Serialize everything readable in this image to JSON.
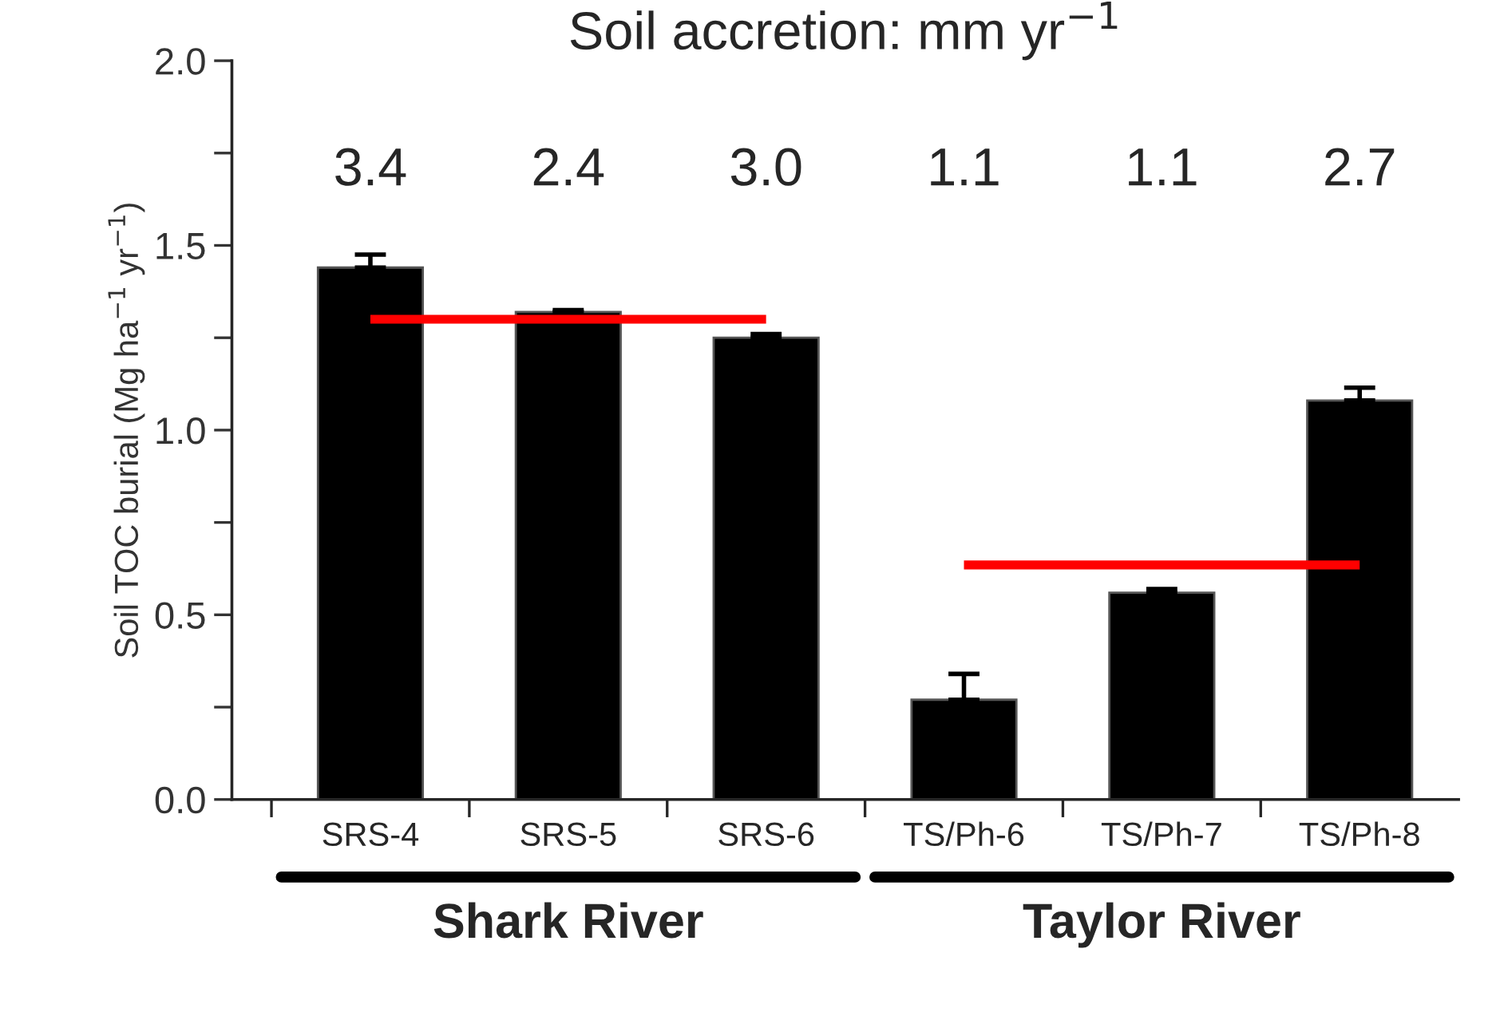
{
  "chart_data": {
    "type": "bar",
    "title": "Soil accretion: mm yr$^{−1}$",
    "ylabel": "Soil TOC burial (Mg ha$^{−1}$ yr$^{−1}$)",
    "categories": [
      "SRS-4",
      "SRS-5",
      "SRS-6",
      "TS/Ph-6",
      "TS/Ph-7",
      "TS/Ph-8"
    ],
    "series": [
      {
        "color": "#000000",
        "values": [
          1.44,
          1.32,
          1.25,
          0.27,
          0.56,
          1.08
        ],
        "errors": [
          0.035,
          0.005,
          0.01,
          0.07,
          0.01,
          0.035
        ]
      },
      {
        "type": "line",
        "color": "#ff0000",
        "values": [
          1.3,
          1.3,
          1.3,
          null,
          null,
          null
        ]
      },
      {
        "type": "line",
        "color": "#ff0000",
        "values": [
          null,
          null,
          null,
          0.635,
          0.635,
          0.635
        ]
      }
    ],
    "annotations": [
      "3.4",
      "2.4",
      "3.0",
      "1.1",
      "1.1",
      "2.7",
      "Shark River",
      "Taylor River"
    ],
    "ylim": [
      0,
      2.0
    ],
    "yticks": [
      {
        "value": 0,
        "label": "0.0"
      },
      {
        "value": 0.25,
        "label": null
      },
      0.5,
      {
        "value": 0.75,
        "label": null
      },
      {
        "value": 1,
        "label": "1.0"
      },
      {
        "value": 1.25,
        "label": null
      },
      1.5,
      {
        "value": 1.75,
        "label": null
      },
      {
        "value": 2,
        "label": "2.0"
      }
    ],
    "grid": false,
    "legend": false
  }
}
